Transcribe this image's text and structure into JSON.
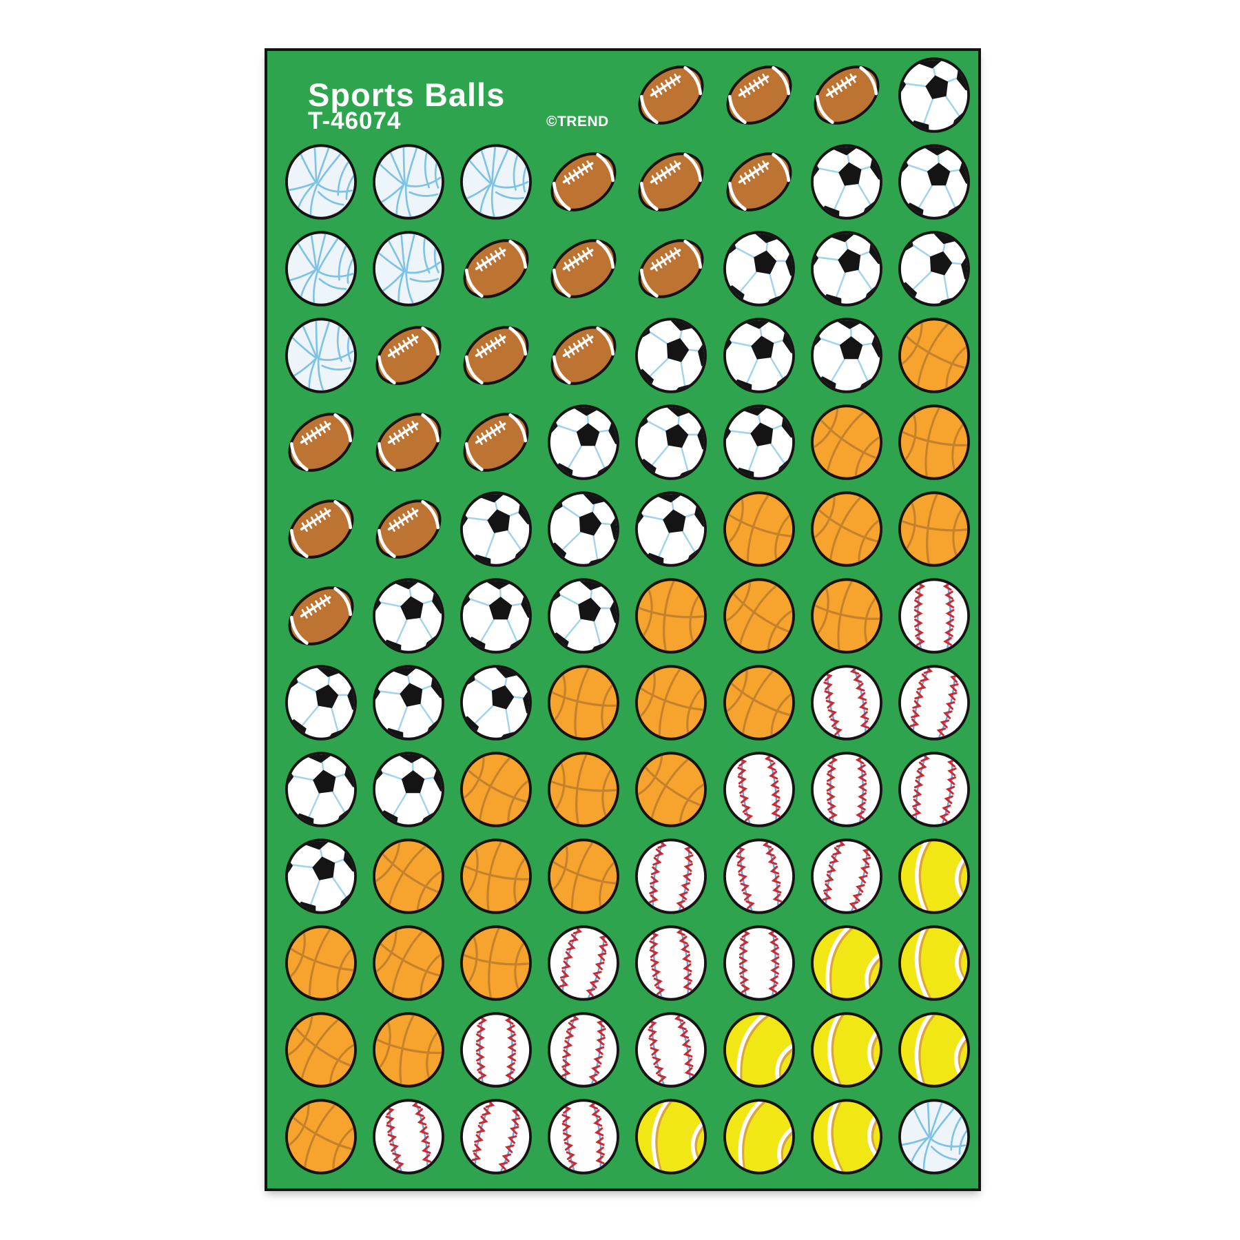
{
  "sheet": {
    "title": "Sports Balls",
    "product_code": "T-46074",
    "copyright": "©TREND",
    "background_color": "#2FA44F"
  },
  "palette": {
    "page_background": "#FFFFFF",
    "outline": "#141414"
  },
  "ball_types": {
    "football": {
      "name": "football",
      "label": "American football sticker",
      "count": 18,
      "colors": {
        "body": "#BD7433",
        "lace": "#FFFFFF"
      }
    },
    "soccer": {
      "name": "soccer-ball",
      "label": "Soccer ball sticker",
      "count": 24,
      "colors": {
        "body": "#FFFFFF",
        "patch": "#141414",
        "seam": "#9FD3EF"
      }
    },
    "volleyball": {
      "name": "volleyball",
      "label": "Volleyball sticker",
      "count": 7,
      "colors": {
        "body": "#EDF5FB",
        "line": "#7EC3E6"
      }
    },
    "basketball": {
      "name": "basketball",
      "label": "Basketball sticker",
      "count": 24,
      "colors": {
        "body": "#F6A42E",
        "seam": "#C5812C"
      }
    },
    "baseball": {
      "name": "baseball",
      "label": "Baseball sticker",
      "count": 18,
      "colors": {
        "body": "#FEFEFE",
        "seam": "#5FA8DC",
        "stitch": "#CE2730"
      }
    },
    "tennis": {
      "name": "tennis-ball",
      "label": "Tennis ball sticker",
      "count": 9,
      "colors": {
        "body": "#F1E714",
        "band": "#FFFFFF",
        "accent": "#DAA53C"
      }
    }
  },
  "grid": {
    "columns": 8,
    "row_count": 13,
    "total_stickers": 100,
    "rows": [
      [
        "",
        "",
        "",
        "",
        "football",
        "football",
        "football",
        "soccer"
      ],
      [
        "volleyball",
        "volleyball",
        "volleyball",
        "football",
        "football",
        "football",
        "soccer",
        "soccer"
      ],
      [
        "volleyball",
        "volleyball",
        "football",
        "football",
        "football",
        "soccer",
        "soccer",
        "soccer"
      ],
      [
        "volleyball",
        "football",
        "football",
        "football",
        "soccer",
        "soccer",
        "soccer",
        "basketball"
      ],
      [
        "football",
        "football",
        "football",
        "soccer",
        "soccer",
        "soccer",
        "basketball",
        "basketball"
      ],
      [
        "football",
        "football",
        "soccer",
        "soccer",
        "soccer",
        "basketball",
        "basketball",
        "basketball"
      ],
      [
        "football",
        "soccer",
        "soccer",
        "soccer",
        "basketball",
        "basketball",
        "basketball",
        "baseball"
      ],
      [
        "soccer",
        "soccer",
        "soccer",
        "basketball",
        "basketball",
        "basketball",
        "baseball",
        "baseball"
      ],
      [
        "soccer",
        "soccer",
        "basketball",
        "basketball",
        "basketball",
        "baseball",
        "baseball",
        "baseball"
      ],
      [
        "soccer",
        "basketball",
        "basketball",
        "basketball",
        "baseball",
        "baseball",
        "baseball",
        "tennis"
      ],
      [
        "basketball",
        "basketball",
        "basketball",
        "baseball",
        "baseball",
        "baseball",
        "tennis",
        "tennis"
      ],
      [
        "basketball",
        "basketball",
        "baseball",
        "baseball",
        "baseball",
        "tennis",
        "tennis",
        "tennis"
      ],
      [
        "basketball",
        "baseball",
        "baseball",
        "baseball",
        "tennis",
        "tennis",
        "tennis",
        "volleyball"
      ]
    ]
  }
}
